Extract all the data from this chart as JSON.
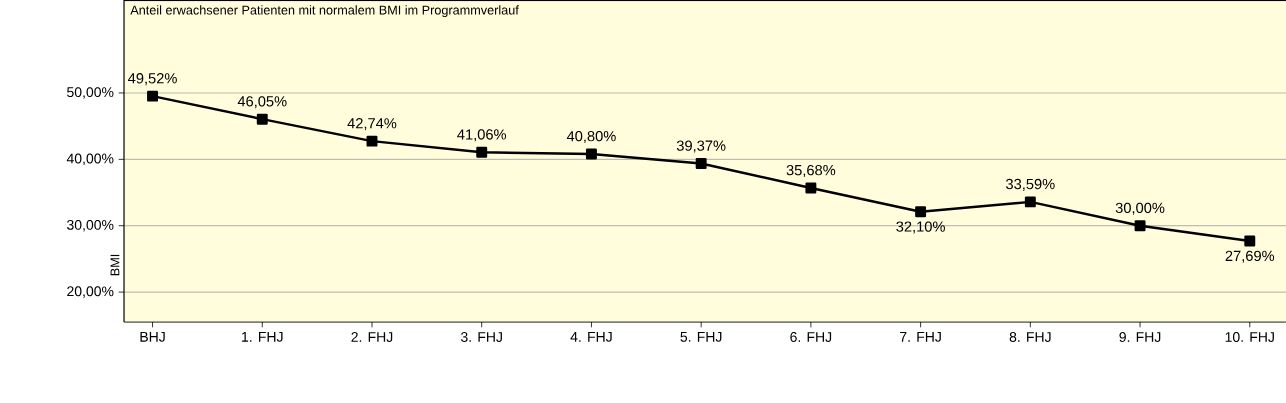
{
  "chart_data": {
    "type": "line",
    "title": "Anteil erwachsener Patienten mit normalem BMI im Programmverlauf",
    "ylabel": "BMI",
    "categories": [
      "BHJ",
      "1. FHJ",
      "2. FHJ",
      "3. FHJ",
      "4. FHJ",
      "5. FHJ",
      "6. FHJ",
      "7. FHJ",
      "8. FHJ",
      "9. FHJ",
      "10. FHJ"
    ],
    "series": [
      {
        "color": "#000000",
        "values": [
          49.52,
          46.05,
          42.74,
          41.06,
          40.8,
          39.37,
          35.68,
          32.1,
          33.59,
          30.0,
          27.69
        ],
        "value_labels": [
          "49,52%",
          "46,05%",
          "42,74%",
          "41,06%",
          "40,80%",
          "39,37%",
          "35,68%",
          "32,10%",
          "33,59%",
          "30,00%",
          "27,69%"
        ]
      }
    ],
    "ylim": [
      15.5,
      64
    ],
    "yticks": [
      {
        "value": 20,
        "label": "20,00%"
      },
      {
        "value": 30,
        "label": "30,00%"
      },
      {
        "value": 40,
        "label": "40,00%"
      },
      {
        "value": 50,
        "label": "50,00%"
      }
    ],
    "grid": "y",
    "marker": "square",
    "line_style": "solid"
  }
}
